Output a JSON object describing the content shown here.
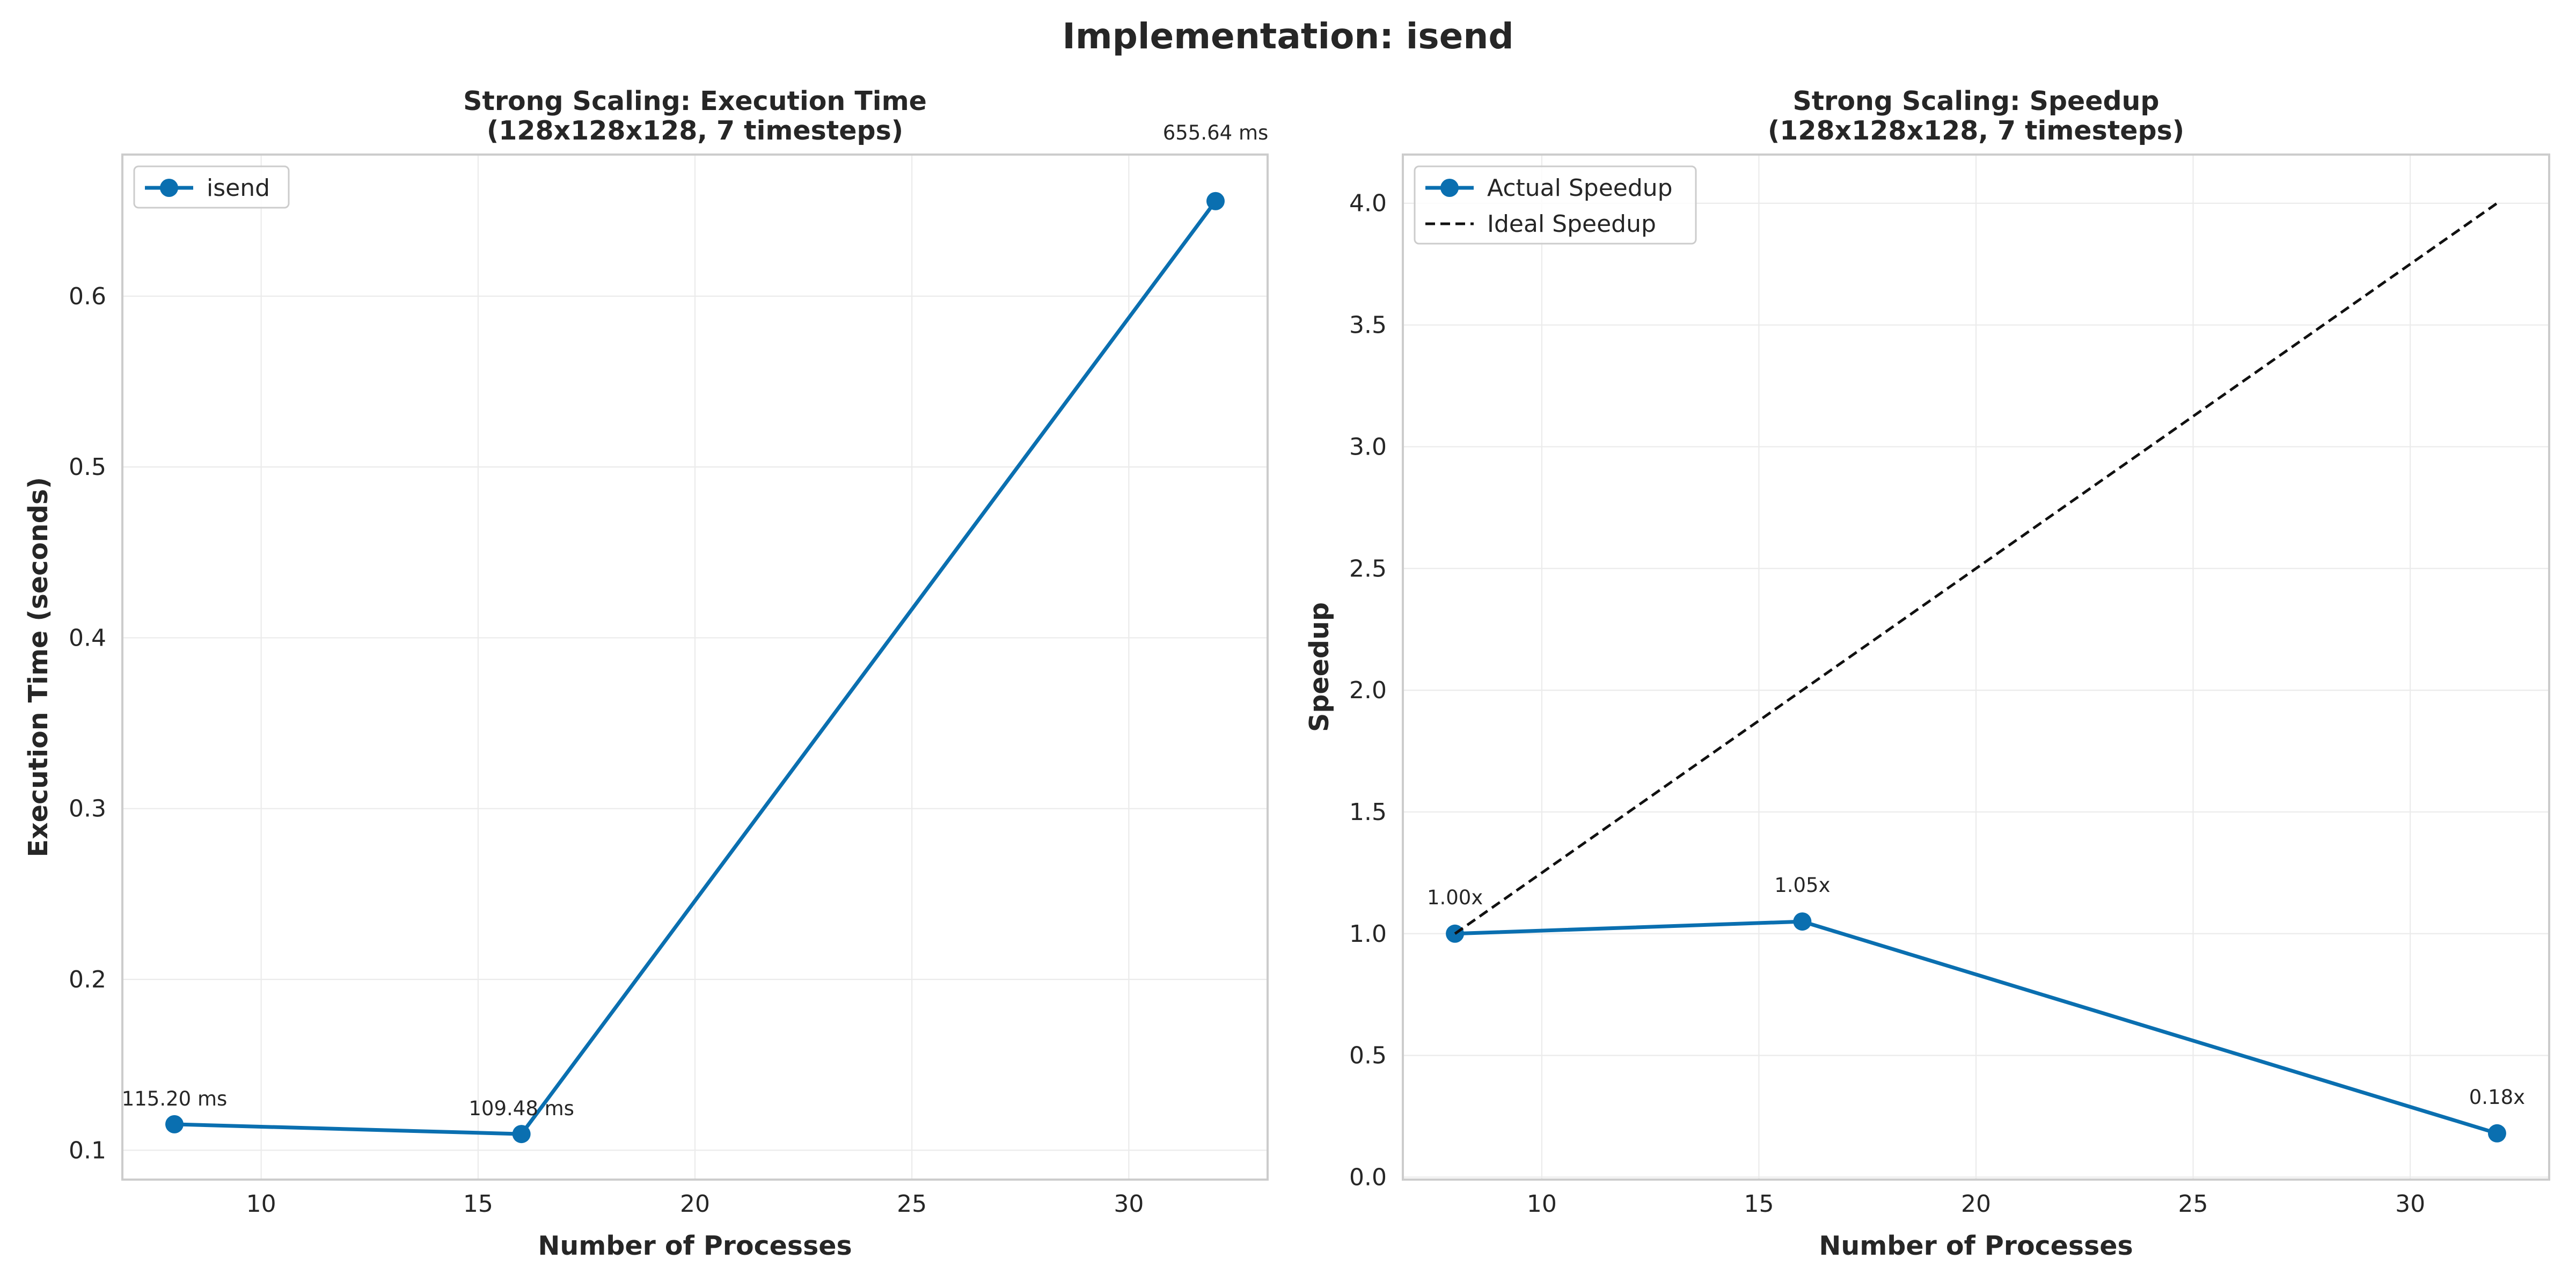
{
  "figure": {
    "suptitle": "Implementation: isend"
  },
  "chart_data": [
    {
      "type": "line",
      "title_line1": "Strong Scaling: Execution Time",
      "title_line2": "(128x128x128, 7 timesteps)",
      "xlabel": "Number of Processes",
      "ylabel": "Execution Time (seconds)",
      "xlim": [
        6.8,
        33.2
      ],
      "ylim": [
        0.0828,
        0.6829
      ],
      "xticks": [
        10,
        15,
        20,
        25,
        30
      ],
      "xtick_labels": [
        "10",
        "15",
        "20",
        "25",
        "30"
      ],
      "yticks": [
        0.1,
        0.2,
        0.3,
        0.4,
        0.5,
        0.6
      ],
      "ytick_labels": [
        "0.1",
        "0.2",
        "0.3",
        "0.4",
        "0.5",
        "0.6"
      ],
      "grid": true,
      "legend_position": "upper-left",
      "series": [
        {
          "name": "isend",
          "color": "#0a6fb0",
          "style": "solid-marker",
          "x": [
            8,
            16,
            32
          ],
          "y": [
            0.1152,
            0.10948,
            0.65564
          ],
          "point_labels": [
            "115.20 ms",
            "109.48 ms",
            "655.64 ms"
          ]
        }
      ]
    },
    {
      "type": "line",
      "title_line1": "Strong Scaling: Speedup",
      "title_line2": "(128x128x128, 7 timesteps)",
      "xlabel": "Number of Processes",
      "ylabel": "Speedup",
      "xlim": [
        6.8,
        33.2
      ],
      "ylim": [
        -0.01,
        4.2
      ],
      "xticks": [
        10,
        15,
        20,
        25,
        30
      ],
      "xtick_labels": [
        "10",
        "15",
        "20",
        "25",
        "30"
      ],
      "yticks": [
        0.0,
        0.5,
        1.0,
        1.5,
        2.0,
        2.5,
        3.0,
        3.5,
        4.0
      ],
      "ytick_labels": [
        "0.0",
        "0.5",
        "1.0",
        "1.5",
        "2.0",
        "2.5",
        "3.0",
        "3.5",
        "4.0"
      ],
      "grid": true,
      "legend_position": "upper-left",
      "series": [
        {
          "name": "Actual Speedup",
          "color": "#0a6fb0",
          "style": "solid-marker",
          "x": [
            8,
            16,
            32
          ],
          "y": [
            1.0,
            1.05,
            0.18
          ],
          "point_labels": [
            "1.00x",
            "1.05x",
            "0.18x"
          ]
        },
        {
          "name": "Ideal Speedup",
          "color": "#111111",
          "style": "dashed",
          "x": [
            8,
            16,
            32
          ],
          "y": [
            1.0,
            2.0,
            4.0
          ],
          "point_labels": []
        }
      ]
    }
  ]
}
